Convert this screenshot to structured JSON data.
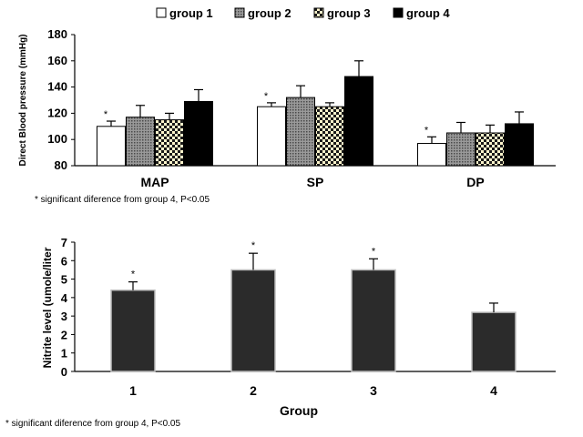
{
  "chart_data": [
    {
      "type": "bar",
      "title": "",
      "xlabel": "",
      "ylabel": "Direct Blood pressure (mmHg)",
      "categories": [
        "MAP",
        "SP",
        "DP"
      ],
      "ylim": [
        80,
        180
      ],
      "yticks": [
        "80",
        "100",
        "120",
        "140",
        "160",
        "180"
      ],
      "legend": "top",
      "grid": false,
      "series": [
        {
          "name": "group 1",
          "color": "#ffffff",
          "pattern": "none",
          "values": [
            110,
            125,
            97
          ],
          "errors": [
            4,
            3,
            5
          ],
          "significant": [
            true,
            true,
            true
          ]
        },
        {
          "name": "group 2",
          "color": "#808080",
          "pattern": "dots-dense",
          "values": [
            117,
            132,
            105
          ],
          "errors": [
            9,
            9,
            8
          ],
          "significant": [
            false,
            false,
            false
          ]
        },
        {
          "name": "group 3",
          "color": "#fff6cc",
          "pattern": "checker",
          "values": [
            115,
            125,
            105
          ],
          "errors": [
            5,
            3,
            6
          ],
          "significant": [
            false,
            false,
            false
          ]
        },
        {
          "name": "group 4",
          "color": "#000000",
          "pattern": "none",
          "values": [
            129,
            148,
            112
          ],
          "errors": [
            9,
            12,
            9
          ],
          "significant": [
            false,
            false,
            false
          ]
        }
      ],
      "significance_mark": "*",
      "footnote": "* significant diference from group 4, P<0.05"
    },
    {
      "type": "bar",
      "title": "",
      "xlabel": "Group",
      "ylabel": "Nitrite level (umole/liter",
      "categories": [
        "1",
        "2",
        "3",
        "4"
      ],
      "ylim": [
        0,
        7
      ],
      "yticks": [
        "0",
        "1",
        "2",
        "3",
        "4",
        "5",
        "6",
        "7"
      ],
      "grid": false,
      "series": [
        {
          "color": "#2b2b2b",
          "values": [
            4.4,
            5.5,
            5.5,
            3.2
          ],
          "errors": [
            0.45,
            0.9,
            0.6,
            0.5
          ],
          "significant": [
            true,
            true,
            true,
            false
          ]
        }
      ],
      "significance_mark": "*",
      "footnote": "* significant diference from group 4, P<0.05"
    }
  ]
}
